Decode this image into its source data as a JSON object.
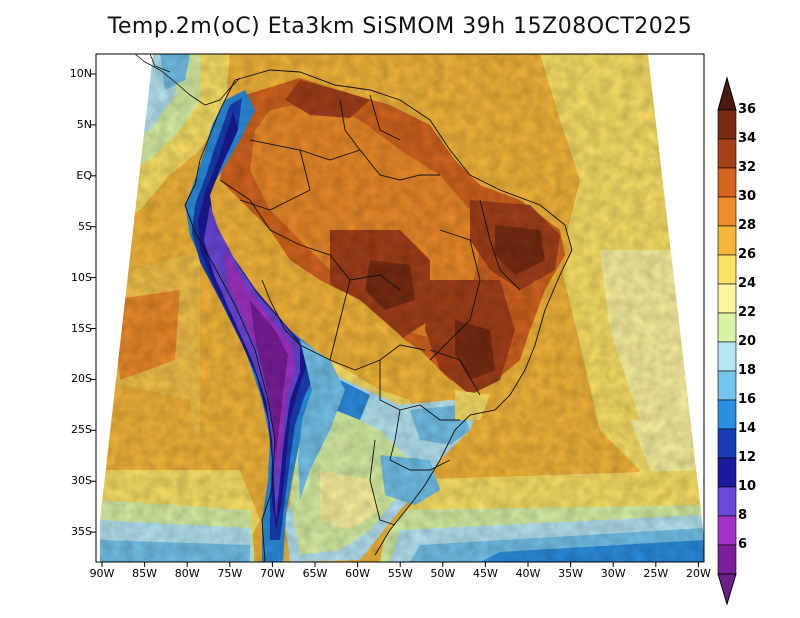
{
  "title": "Temp.2m(oC) Eta3km SiSMOM 39h 15Z08OCT2025",
  "y_ticks": [
    "10N",
    "5N",
    "EQ",
    "5S",
    "10S",
    "15S",
    "20S",
    "25S",
    "30S",
    "35S"
  ],
  "x_ticks": [
    "90W",
    "85W",
    "80W",
    "75W",
    "70W",
    "65W",
    "60W",
    "55W",
    "50W",
    "45W",
    "40W",
    "35W",
    "30W",
    "25W",
    "20W"
  ],
  "colorbar": {
    "labels": [
      "36",
      "34",
      "32",
      "30",
      "28",
      "26",
      "24",
      "22",
      "20",
      "18",
      "16",
      "14",
      "12",
      "10",
      "8",
      "6"
    ],
    "colors": [
      "#5a1e0f",
      "#7a2c12",
      "#a3401a",
      "#d4651f",
      "#ee8c2a",
      "#f5b73a",
      "#fde266",
      "#fcf4a0",
      "#d8f2a6",
      "#b7e6f5",
      "#74c4ec",
      "#2b8fe0",
      "#1a3fb4",
      "#1a1a9a",
      "#6b48d8",
      "#a533c9",
      "#7a1e9a"
    ],
    "top_color": "#4a1a0c",
    "bottom_color": "#6a1f8a"
  }
}
